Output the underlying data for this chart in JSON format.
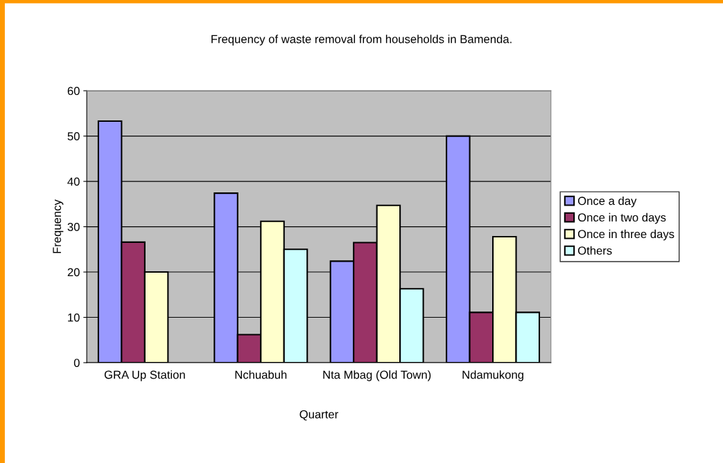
{
  "chart_data": {
    "type": "bar",
    "title": "Frequency of waste removal from households in Bamenda.",
    "xlabel": "Quarter",
    "ylabel": "Frequency",
    "categories": [
      "GRA Up Station",
      "Nchuabuh",
      "Nta Mbag (Old Town)",
      "Ndamukong"
    ],
    "series": [
      {
        "name": "Once a day",
        "color": "#9999ff",
        "values": [
          53.3,
          37.4,
          22.4,
          50
        ]
      },
      {
        "name": "Once in two days",
        "color": "#993366",
        "values": [
          26.6,
          6.2,
          26.5,
          11.1
        ]
      },
      {
        "name": "Once in three days",
        "color": "#ffffcc",
        "values": [
          20,
          31.2,
          34.7,
          27.8
        ]
      },
      {
        "name": "Others",
        "color": "#ccffff",
        "values": [
          null,
          25,
          16.3,
          11.1
        ]
      }
    ],
    "ylim": [
      0,
      60
    ],
    "yticks": [
      0,
      10,
      20,
      30,
      40,
      50,
      60
    ],
    "grid": "y",
    "legend": "right"
  }
}
